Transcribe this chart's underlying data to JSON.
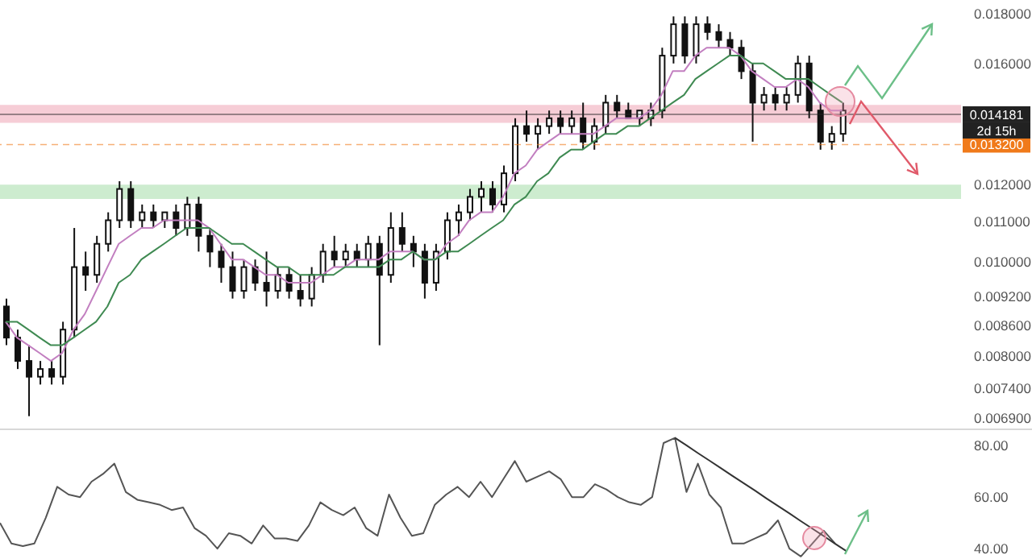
{
  "chart_data": [
    {
      "type": "candlestick",
      "log": true,
      "tick_labels": "y",
      "color": "#111111",
      "categories": [
        null,
        null,
        null,
        null,
        null,
        null,
        null,
        null,
        null,
        null,
        null,
        null,
        null,
        null,
        null,
        null,
        null,
        null,
        null,
        null,
        null,
        null,
        null,
        null,
        null,
        null,
        null,
        null,
        null,
        null,
        null,
        null,
        null,
        null,
        null,
        null,
        null,
        null,
        null,
        null,
        null,
        null,
        null,
        null,
        null,
        null,
        null,
        null,
        null,
        null,
        null,
        null,
        null,
        null,
        null,
        null,
        null,
        null,
        null,
        null,
        null,
        null,
        null,
        null,
        null,
        null,
        null,
        null,
        null,
        null,
        null,
        null,
        null,
        null,
        null,
        null,
        null,
        null,
        null,
        null,
        null,
        null,
        null,
        null,
        null
      ],
      "ohlc": [
        [
          0.00899,
          0.00916,
          0.0082,
          0.00835
        ],
        [
          0.00835,
          0.00851,
          0.00775,
          0.0079
        ],
        [
          0.0079,
          0.0082,
          0.00693,
          0.00761
        ],
        [
          0.00761,
          0.0079,
          0.00747,
          0.00775
        ],
        [
          0.00775,
          0.0079,
          0.00747,
          0.00761
        ],
        [
          0.00761,
          0.00867,
          0.00747,
          0.00851
        ],
        [
          0.00851,
          0.01083,
          0.00835,
          0.00987
        ],
        [
          0.00987,
          0.01024,
          0.00933,
          0.00969
        ],
        [
          0.00969,
          0.01063,
          0.00951,
          0.01043
        ],
        [
          0.01043,
          0.01124,
          0.01024,
          0.01103
        ],
        [
          0.01103,
          0.0121,
          0.01083,
          0.01188
        ],
        [
          0.01188,
          0.0121,
          0.01083,
          0.01103
        ],
        [
          0.01103,
          0.01145,
          0.01083,
          0.01124
        ],
        [
          0.01124,
          0.01145,
          0.01083,
          0.01103
        ],
        [
          0.01103,
          0.01124,
          0.01083,
          0.01124
        ],
        [
          0.01124,
          0.01145,
          0.01063,
          0.01083
        ],
        [
          0.01083,
          0.01166,
          0.01063,
          0.01145
        ],
        [
          0.01145,
          0.01166,
          0.01024,
          0.01063
        ],
        [
          0.01063,
          0.01083,
          0.00987,
          0.01024
        ],
        [
          0.01024,
          0.01043,
          0.00951,
          0.00987
        ],
        [
          0.00987,
          0.01024,
          0.00916,
          0.00933
        ],
        [
          0.00933,
          0.01005,
          0.00916,
          0.00987
        ],
        [
          0.00987,
          0.01005,
          0.00933,
          0.00951
        ],
        [
          0.00951,
          0.01024,
          0.00899,
          0.00933
        ],
        [
          0.00933,
          0.00987,
          0.00916,
          0.00969
        ],
        [
          0.00969,
          0.00987,
          0.00916,
          0.00933
        ],
        [
          0.00933,
          0.00969,
          0.00899,
          0.00916
        ],
        [
          0.00916,
          0.00987,
          0.00899,
          0.00969
        ],
        [
          0.00969,
          0.01043,
          0.00951,
          0.01024
        ],
        [
          0.01024,
          0.01063,
          0.00987,
          0.01005
        ],
        [
          0.01005,
          0.01043,
          0.00987,
          0.01024
        ],
        [
          0.01024,
          0.01043,
          0.00987,
          0.01005
        ],
        [
          0.01005,
          0.01063,
          0.00987,
          0.01043
        ],
        [
          0.01043,
          0.01063,
          0.0082,
          0.00969
        ],
        [
          0.00969,
          0.01124,
          0.00951,
          0.01083
        ],
        [
          0.01083,
          0.01124,
          0.01024,
          0.01043
        ],
        [
          0.01043,
          0.01063,
          0.00987,
          0.01024
        ],
        [
          0.01024,
          0.01043,
          0.00916,
          0.00951
        ],
        [
          0.00951,
          0.01043,
          0.00933,
          0.01024
        ],
        [
          0.01024,
          0.01124,
          0.01005,
          0.01103
        ],
        [
          0.01103,
          0.01145,
          0.01063,
          0.01124
        ],
        [
          0.01124,
          0.01188,
          0.01103,
          0.01166
        ],
        [
          0.01166,
          0.0121,
          0.01124,
          0.01188
        ],
        [
          0.01188,
          0.0121,
          0.01124,
          0.01145
        ],
        [
          0.01145,
          0.01256,
          0.01124,
          0.01233
        ],
        [
          0.01233,
          0.01405,
          0.0121,
          0.01379
        ],
        [
          0.01379,
          0.01431,
          0.01329,
          0.01354
        ],
        [
          0.01354,
          0.01405,
          0.01304,
          0.01379
        ],
        [
          0.01379,
          0.01431,
          0.01354,
          0.01405
        ],
        [
          0.01405,
          0.01431,
          0.01354,
          0.01379
        ],
        [
          0.01379,
          0.01431,
          0.01354,
          0.01405
        ],
        [
          0.01405,
          0.01458,
          0.01304,
          0.01329
        ],
        [
          0.01329,
          0.01405,
          0.01304,
          0.01379
        ],
        [
          0.01379,
          0.01485,
          0.01354,
          0.01458
        ],
        [
          0.01458,
          0.01485,
          0.01405,
          0.01431
        ],
        [
          0.01431,
          0.01458,
          0.01405,
          0.01405
        ],
        [
          0.01405,
          0.01431,
          0.01379,
          0.01431
        ],
        [
          0.01405,
          0.01458,
          0.01379,
          0.01431
        ],
        [
          0.01431,
          0.01661,
          0.01405,
          0.0163
        ],
        [
          0.0163,
          0.01789,
          0.016,
          0.01756
        ],
        [
          0.01756,
          0.01789,
          0.016,
          0.0163
        ],
        [
          0.0163,
          0.01789,
          0.016,
          0.01756
        ],
        [
          0.01756,
          0.01789,
          0.01692,
          0.01724
        ],
        [
          0.01724,
          0.01756,
          0.01661,
          0.01692
        ],
        [
          0.01692,
          0.01724,
          0.0163,
          0.01661
        ],
        [
          0.01661,
          0.01692,
          0.01542,
          0.01571
        ],
        [
          0.01571,
          0.016,
          0.01329,
          0.01458
        ],
        [
          0.01458,
          0.01513,
          0.01431,
          0.01485
        ],
        [
          0.01485,
          0.01513,
          0.01431,
          0.01458
        ],
        [
          0.01458,
          0.01513,
          0.01431,
          0.01485
        ],
        [
          0.01485,
          0.0163,
          0.01458,
          0.016
        ],
        [
          0.016,
          0.0163,
          0.01405,
          0.01431
        ],
        [
          0.01431,
          0.01458,
          0.01304,
          0.01329
        ],
        [
          0.01329,
          0.01379,
          0.01304,
          0.01354
        ],
        [
          0.01354,
          0.01458,
          0.01329,
          0.01431
        ],
        null,
        null,
        null,
        null,
        null,
        null,
        null,
        null,
        null,
        null
      ],
      "series": [
        {
          "type": "line",
          "color": "#c27fc0",
          "values": [
            0.00867,
            0.00835,
            0.0082,
            0.00805,
            0.0079,
            0.00805,
            0.00851,
            0.00883,
            0.00933,
            0.00987,
            0.01043,
            0.01063,
            0.01083,
            0.01083,
            0.01103,
            0.01103,
            0.01103,
            0.01103,
            0.01083,
            0.01043,
            0.01005,
            0.01005,
            0.00987,
            0.00969,
            0.00969,
            0.00951,
            0.00951,
            0.00951,
            0.00969,
            0.00987,
            0.00987,
            0.01005,
            0.01005,
            0.01005,
            0.01024,
            0.01024,
            0.01024,
            0.01005,
            0.01005,
            0.01043,
            0.01063,
            0.01103,
            0.01124,
            0.01124,
            0.01166,
            0.01233,
            0.01256,
            0.01304,
            0.01329,
            0.01354,
            0.01354,
            0.01354,
            0.01354,
            0.01379,
            0.01405,
            0.01405,
            0.01405,
            0.01431,
            0.01485,
            0.01571,
            0.01571,
            0.0163,
            0.01661,
            0.01661,
            0.01661,
            0.0163,
            0.01571,
            0.01542,
            0.01513,
            0.01513,
            0.01542,
            0.01513,
            0.01458,
            0.01431,
            0.01431,
            null,
            null,
            null,
            null,
            null,
            null,
            null,
            null,
            null,
            null
          ]
        },
        {
          "type": "line",
          "color": "#3f8a52",
          "values": [
            0.00867,
            0.00867,
            0.00851,
            0.00835,
            0.0082,
            0.0082,
            0.00835,
            0.00851,
            0.00867,
            0.00899,
            0.00951,
            0.00969,
            0.01005,
            0.01024,
            0.01043,
            0.01063,
            0.01083,
            0.01083,
            0.01083,
            0.01063,
            0.01043,
            0.01043,
            0.01024,
            0.01005,
            0.00987,
            0.00987,
            0.00969,
            0.00969,
            0.00969,
            0.00969,
            0.00987,
            0.00987,
            0.00987,
            0.00987,
            0.01005,
            0.01005,
            0.01024,
            0.01005,
            0.01005,
            0.01024,
            0.01024,
            0.01043,
            0.01063,
            0.01083,
            0.01103,
            0.01145,
            0.01166,
            0.0121,
            0.01233,
            0.0128,
            0.01304,
            0.01304,
            0.01329,
            0.01354,
            0.01354,
            0.01379,
            0.01379,
            0.01405,
            0.01431,
            0.01458,
            0.01485,
            0.01542,
            0.01571,
            0.016,
            0.0163,
            0.0163,
            0.016,
            0.016,
            0.01571,
            0.01542,
            0.01542,
            0.01542,
            0.01513,
            0.01485,
            0.01458,
            null,
            null,
            null,
            null,
            null,
            null,
            null,
            null,
            null,
            null
          ]
        }
      ],
      "ylim": [
        0.00673,
        0.0186
      ],
      "yticks": [
        {
          "value": 0.018,
          "label": "0.018000"
        },
        {
          "value": 0.016,
          "label": "0.016000"
        },
        {
          "value": 0.012,
          "label": "0.012000"
        },
        {
          "value": 0.011,
          "label": "0.011000"
        },
        {
          "value": 0.01,
          "label": "0.010000"
        },
        {
          "value": 0.0092,
          "label": "0.009200"
        },
        {
          "value": 0.0086,
          "label": "0.008600"
        },
        {
          "value": 0.008,
          "label": "0.008000"
        },
        {
          "value": 0.0074,
          "label": "0.007400"
        },
        {
          "value": 0.0069,
          "label": "0.006900"
        }
      ],
      "bands": [
        {
          "axis": "y",
          "from": 0.0139,
          "to": 0.0145,
          "color": "#f6cdd6"
        },
        {
          "axis": "y",
          "from": 0.0116,
          "to": 0.012,
          "color": "#cdeccf"
        }
      ],
      "ref_lines": [
        {
          "axis": "y",
          "value": 0.014181,
          "label": "0.014181",
          "color": "#222222",
          "line_style": "solid"
        },
        {
          "axis": "y",
          "value": 0.0132,
          "label": "0.013200",
          "color": "#f07a1a",
          "line_style": "dashed"
        }
      ],
      "annotations": [
        "2d 15h"
      ]
    },
    {
      "type": "line",
      "tick_labels": "y",
      "categories": [
        null,
        null,
        null,
        null,
        null,
        null,
        null,
        null,
        null,
        null,
        null,
        null,
        null,
        null,
        null,
        null,
        null,
        null,
        null,
        null,
        null,
        null,
        null,
        null,
        null,
        null,
        null,
        null,
        null,
        null,
        null,
        null,
        null,
        null,
        null,
        null,
        null,
        null,
        null,
        null,
        null,
        null,
        null,
        null,
        null,
        null,
        null,
        null,
        null,
        null,
        null,
        null,
        null,
        null,
        null,
        null,
        null,
        null,
        null,
        null,
        null,
        null,
        null,
        null,
        null,
        null,
        null,
        null,
        null,
        null,
        null,
        null,
        null,
        null,
        null,
        null,
        null,
        null,
        null,
        null,
        null,
        null,
        null,
        null,
        null
      ],
      "series": [
        {
          "color": "#555555",
          "values": [
            50,
            42,
            41,
            42,
            52,
            64,
            61,
            60,
            66,
            69,
            73,
            62,
            59,
            58,
            57,
            55,
            56,
            48,
            45,
            40,
            46,
            45,
            42,
            49,
            44,
            44,
            43,
            49,
            58,
            55,
            53,
            56,
            48,
            45,
            61,
            52,
            45,
            46,
            57,
            61,
            64,
            60,
            66,
            60,
            67,
            74,
            66,
            68,
            70,
            67,
            60,
            60,
            65,
            63,
            60,
            58,
            57,
            60,
            81,
            83,
            62,
            73,
            61,
            56,
            42,
            42,
            44,
            46,
            51,
            40,
            37,
            42,
            47,
            42,
            null,
            null,
            null,
            null,
            null,
            null,
            null,
            null,
            null,
            null,
            null
          ]
        },
        {
          "type": "line",
          "color": "#333333",
          "values": [
            null,
            null,
            null,
            null,
            null,
            null,
            null,
            null,
            null,
            null,
            null,
            null,
            null,
            null,
            null,
            null,
            null,
            null,
            null,
            null,
            null,
            null,
            null,
            null,
            null,
            null,
            null,
            null,
            null,
            null,
            null,
            null,
            null,
            null,
            null,
            null,
            null,
            null,
            null,
            null,
            null,
            null,
            null,
            null,
            null,
            null,
            null,
            null,
            null,
            null,
            null,
            null,
            null,
            null,
            null,
            null,
            null,
            null,
            null,
            83,
            80.1,
            77.1,
            74.2,
            71.3,
            68.3,
            65.4,
            62.5,
            59.5,
            56.6,
            53.7,
            50.7,
            47.8,
            44.9,
            41.9,
            39,
            null,
            null,
            null,
            null,
            null,
            null,
            null,
            null,
            null,
            null
          ]
        }
      ],
      "ylim": [
        36,
        86
      ],
      "yticks": [
        {
          "value": 40,
          "label": "40.00"
        },
        {
          "value": 60,
          "label": "60.00"
        },
        {
          "value": 80,
          "label": "80.00"
        }
      ]
    }
  ]
}
